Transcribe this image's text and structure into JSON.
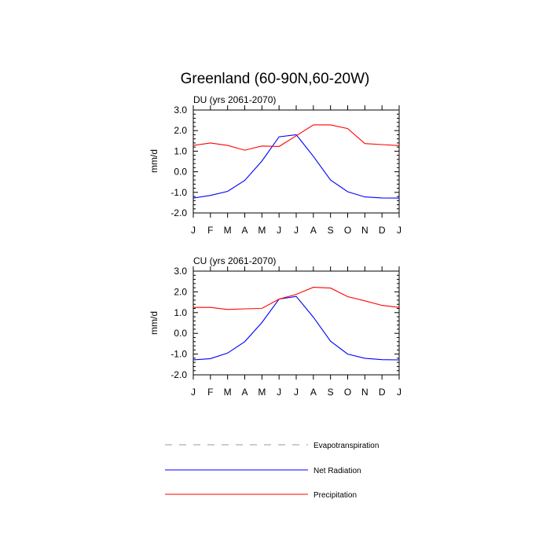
{
  "title": "Greenland (60-90N,60-20W)",
  "chart_data": [
    {
      "type": "line",
      "subtitle": "DU (yrs 2061-2070)",
      "xlabel": "",
      "ylabel": "mm/d",
      "categories": [
        "J",
        "F",
        "M",
        "A",
        "M",
        "J",
        "J",
        "A",
        "S",
        "O",
        "N",
        "D",
        "J"
      ],
      "ylim": [
        -2.0,
        3.0
      ],
      "yticks": [
        "-2.0",
        "-1.0",
        "0.0",
        "1.0",
        "2.0",
        "3.0"
      ],
      "grid": false,
      "series": [
        {
          "name": "Net Radiation",
          "color": "#0000ff",
          "values": [
            -1.28,
            -1.15,
            -0.95,
            -0.42,
            0.52,
            1.7,
            1.8,
            0.75,
            -0.4,
            -0.97,
            -1.22,
            -1.27,
            -1.28
          ]
        },
        {
          "name": "Precipitation",
          "color": "#ff0000",
          "values": [
            1.28,
            1.4,
            1.28,
            1.05,
            1.25,
            1.23,
            1.75,
            2.28,
            2.28,
            2.1,
            1.37,
            1.32,
            1.27
          ]
        }
      ]
    },
    {
      "type": "line",
      "subtitle": "CU (yrs 2061-2070)",
      "xlabel": "",
      "ylabel": "mm/d",
      "categories": [
        "J",
        "F",
        "M",
        "A",
        "M",
        "J",
        "J",
        "A",
        "S",
        "O",
        "N",
        "D",
        "J"
      ],
      "ylim": [
        -2.0,
        3.0
      ],
      "yticks": [
        "-2.0",
        "-1.0",
        "0.0",
        "1.0",
        "2.0",
        "3.0"
      ],
      "grid": false,
      "series": [
        {
          "name": "Net Radiation",
          "color": "#0000ff",
          "values": [
            -1.28,
            -1.22,
            -0.95,
            -0.4,
            0.52,
            1.65,
            1.78,
            0.78,
            -0.38,
            -1.0,
            -1.2,
            -1.27,
            -1.28
          ]
        },
        {
          "name": "Precipitation",
          "color": "#ff0000",
          "values": [
            1.25,
            1.25,
            1.15,
            1.18,
            1.2,
            1.65,
            1.88,
            2.22,
            2.18,
            1.77,
            1.57,
            1.35,
            1.25
          ]
        }
      ]
    }
  ],
  "legend": [
    {
      "label": "Evapotranspiration",
      "color": "#999999",
      "dash": true
    },
    {
      "label": "Net Radiation",
      "color": "#0000ff",
      "dash": false
    },
    {
      "label": "Precipitation",
      "color": "#ff0000",
      "dash": false
    }
  ]
}
